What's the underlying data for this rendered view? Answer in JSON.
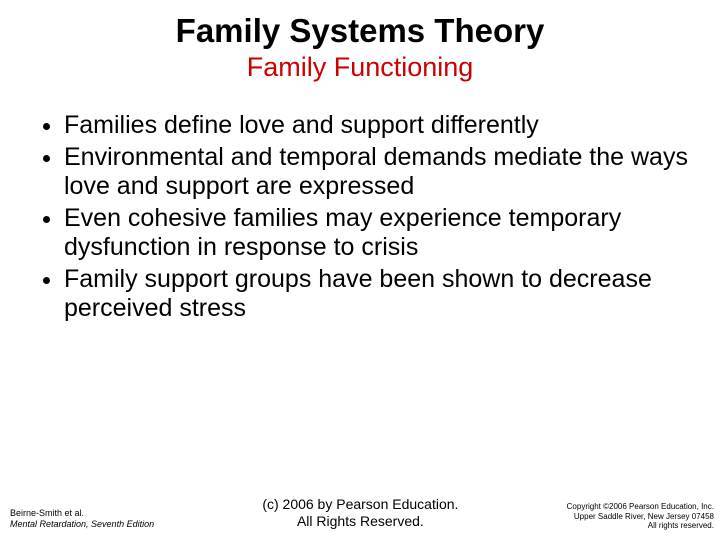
{
  "title": {
    "text": "Family Systems Theory",
    "color": "#000000",
    "fontsize": 33
  },
  "subtitle": {
    "text": "Family Functioning",
    "color": "#cc0000",
    "fontsize": 27
  },
  "bullets": {
    "fontsize": 25,
    "color": "#000000",
    "items": [
      "Families define love and support differently",
      "Environmental and temporal demands mediate the ways love and support are expressed",
      "Even cohesive families may experience temporary dysfunction in response to crisis",
      "Family support groups have been shown to decrease perceived stress"
    ]
  },
  "footer": {
    "left": {
      "line1": "Beirne-Smith et al.",
      "line2": "Mental Retardation, Seventh Edition",
      "fontsize": 9
    },
    "center": {
      "line1": "(c) 2006 by Pearson Education.",
      "line2": "All Rights Reserved.",
      "fontsize": 14
    },
    "right": {
      "line1": "Copyright ©2006 Pearson Education, Inc.",
      "line2": "Upper Saddle River, New Jersey 07458",
      "line3": "All rights reserved.",
      "fontsize": 8
    }
  }
}
